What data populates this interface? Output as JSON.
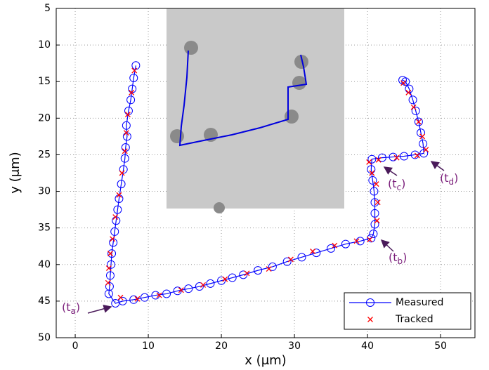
{
  "chart_data": {
    "type": "line",
    "xlabel": "x  (μm)",
    "ylabel": "y  (μm)",
    "xlim": [
      -2.6,
      54.7
    ],
    "ylim": [
      5,
      50
    ],
    "y_inverted": true,
    "xticks": [
      0,
      10,
      20,
      30,
      40,
      50
    ],
    "yticks": [
      5,
      10,
      15,
      20,
      25,
      30,
      35,
      40,
      45,
      50
    ],
    "grid": true,
    "legend": "lower right",
    "series": [
      {
        "name": "Measured",
        "color": "#0000ff",
        "marker": "circle",
        "x": [
          8.3,
          8.0,
          7.8,
          7.6,
          7.3,
          7.0,
          7.1,
          6.9,
          6.8,
          6.6,
          6.3,
          6.0,
          5.8,
          5.6,
          5.4,
          5.2,
          5.0,
          4.9,
          4.8,
          4.7,
          4.6,
          5.5,
          6.5,
          8,
          9.5,
          11,
          12.5,
          14,
          15.5,
          17,
          18.5,
          20,
          21.5,
          23,
          25,
          27,
          29,
          31,
          33,
          35,
          37,
          39,
          40.5,
          40.8,
          41,
          41,
          41,
          40.9,
          40.7,
          40.5,
          40.6,
          42,
          43.5,
          45,
          46.5,
          47.7,
          47.6,
          47.3,
          47,
          46.6,
          46.2,
          45.7,
          45.2,
          44.8
        ],
        "values": [
          12.8,
          14.5,
          16,
          17.5,
          19,
          21,
          22.5,
          24,
          25.5,
          27,
          29,
          31,
          32.5,
          34,
          35.5,
          37,
          38.5,
          40,
          41.5,
          43,
          44,
          45.3,
          45,
          44.8,
          44.5,
          44.2,
          44,
          43.6,
          43.3,
          43,
          42.6,
          42.2,
          41.8,
          41.4,
          40.8,
          40.3,
          39.6,
          39,
          38.4,
          37.8,
          37.2,
          36.8,
          36.4,
          35.8,
          34.5,
          33,
          31.5,
          30,
          28.5,
          27,
          25.6,
          25.4,
          25.3,
          25.2,
          25,
          24.8,
          23.5,
          22,
          20.5,
          19,
          17.5,
          16,
          15,
          14.8
        ]
      },
      {
        "name": "Tracked",
        "color": "#ff0000",
        "marker": "x",
        "x": [
          8.1,
          7.7,
          7.2,
          7.0,
          6.8,
          6.4,
          6.0,
          5.5,
          5.1,
          4.8,
          4.6,
          4.5,
          6.2,
          8.5,
          11.5,
          14.5,
          17.5,
          20.5,
          23.5,
          26.5,
          29.5,
          32.5,
          35.5,
          38.5,
          40.3,
          41.3,
          41.4,
          41.2,
          40.6,
          40.2,
          41.5,
          44,
          46.8,
          48,
          47.5,
          47,
          46.3,
          45.6,
          44.9
        ],
        "values": [
          13.5,
          16.5,
          19.5,
          22,
          24.5,
          27.5,
          30.5,
          33.5,
          36.5,
          38.5,
          40.5,
          42.5,
          44.5,
          44.7,
          44.2,
          43.5,
          42.8,
          42,
          41.2,
          40.6,
          39.3,
          38.2,
          37.4,
          36.8,
          36.6,
          34,
          31.5,
          29,
          27.5,
          26,
          25.7,
          25.4,
          25.1,
          24.3,
          22.5,
          20.5,
          18.5,
          16.5,
          15.2
        ]
      }
    ],
    "annotations": [
      {
        "parts": [
          "(t",
          "a",
          ")"
        ]
      },
      {
        "parts": [
          "(t",
          "b",
          ")"
        ]
      },
      {
        "parts": [
          "(t",
          "c",
          ")"
        ]
      },
      {
        "parts": [
          "(t",
          "d",
          ")"
        ]
      }
    ]
  }
}
